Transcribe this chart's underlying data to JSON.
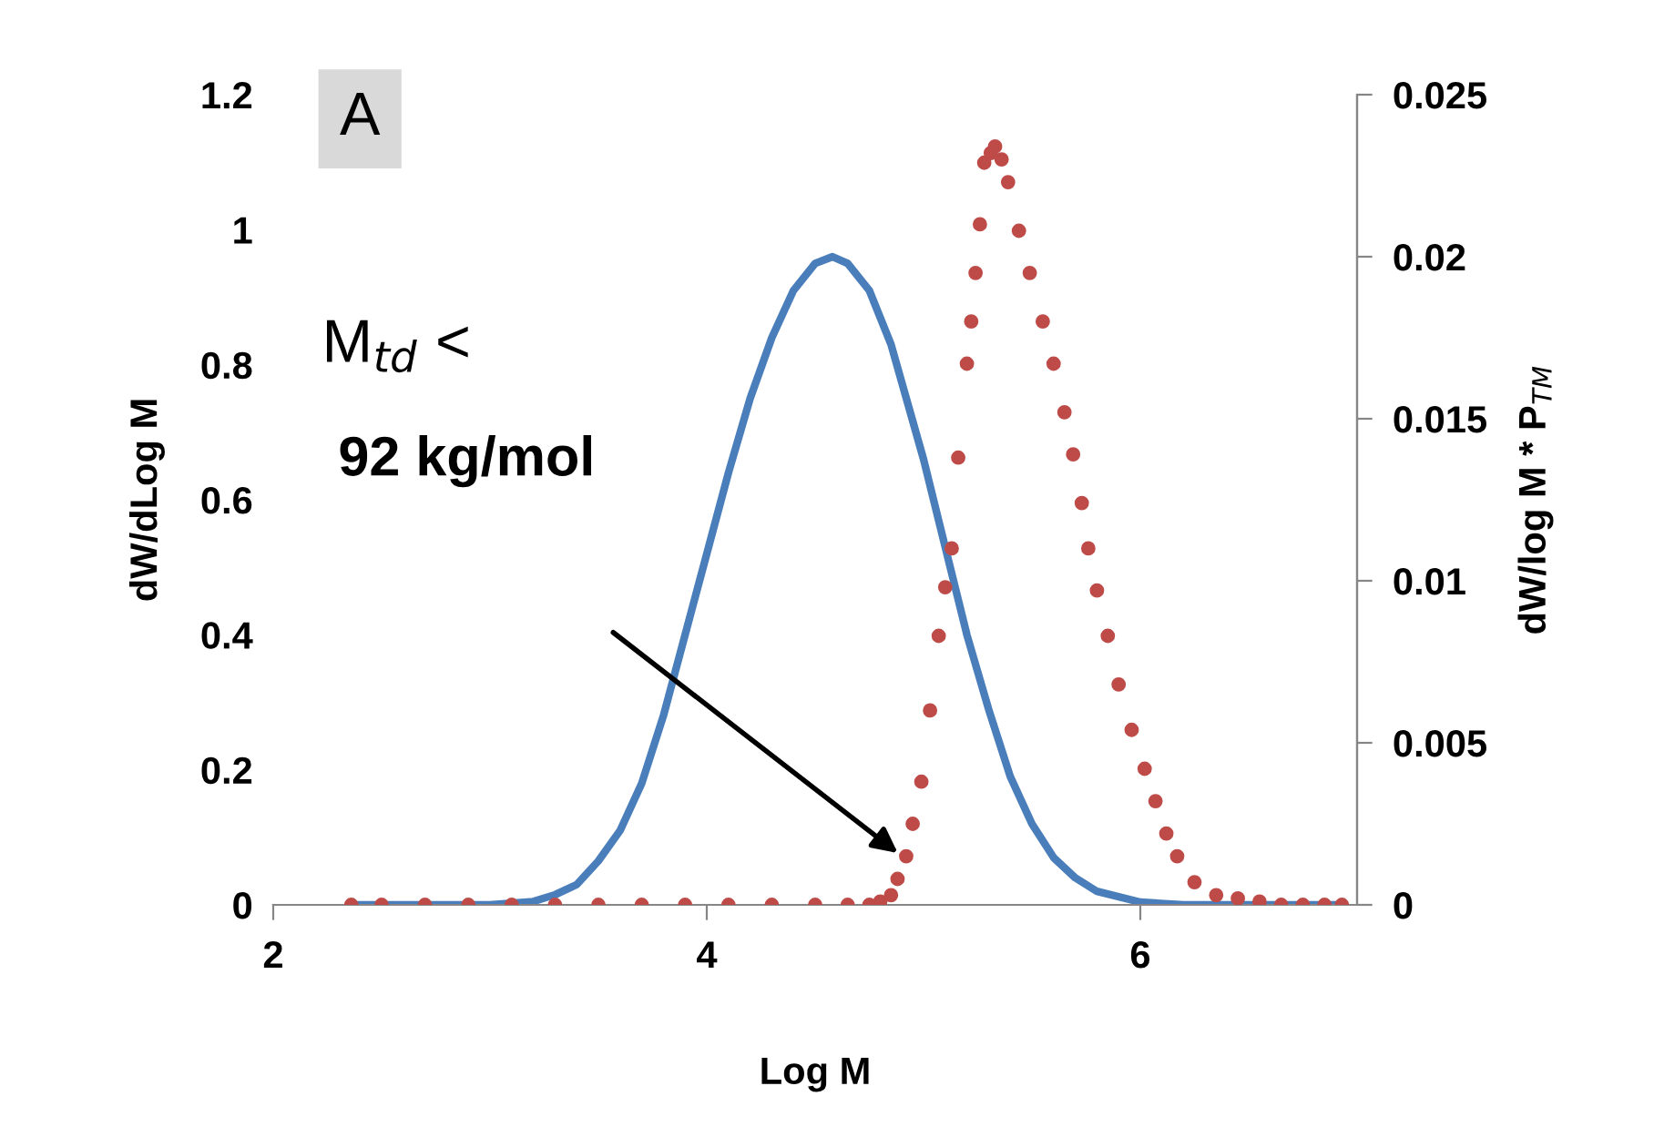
{
  "chart_data": {
    "type": "line",
    "xlabel": "Log M",
    "ylabel": "dW/dLog M",
    "y2label": "dW/log M * P$_{TM}$",
    "xlim": [
      2,
      7
    ],
    "xticks": [
      2,
      4,
      6
    ],
    "ylim": [
      0,
      1.2
    ],
    "yticks": [
      0,
      0.2,
      0.4,
      0.6,
      0.8,
      1,
      1.2
    ],
    "y2lim": [
      0,
      0.025
    ],
    "y2ticks": [
      0,
      0.005,
      0.01,
      0.015,
      0.02,
      0.025
    ],
    "grid": false,
    "legend": false,
    "annotations": [
      "A",
      "M$_{td}$ <",
      "92 kg/mol"
    ],
    "series": [
      {
        "color": "#4a7ebb",
        "x": [
          2.4,
          3.0,
          3.2,
          3.3,
          3.4,
          3.5,
          3.6,
          3.7,
          3.8,
          3.9,
          4.0,
          4.1,
          4.2,
          4.3,
          4.4,
          4.5,
          4.58,
          4.65,
          4.75,
          4.85,
          5.0,
          5.1,
          5.2,
          5.3,
          5.4,
          5.5,
          5.6,
          5.7,
          5.8,
          6.0,
          6.2,
          6.9
        ],
        "values": [
          0,
          0,
          0.005,
          0.015,
          0.03,
          0.065,
          0.11,
          0.18,
          0.28,
          0.4,
          0.52,
          0.64,
          0.75,
          0.84,
          0.91,
          0.95,
          0.96,
          0.95,
          0.91,
          0.83,
          0.66,
          0.53,
          0.4,
          0.29,
          0.19,
          0.12,
          0.07,
          0.04,
          0.02,
          0.004,
          0,
          0
        ]
      },
      {
        "type": "scatter",
        "axis": "y2",
        "marker": "circle",
        "color": "#be4b48",
        "x": [
          2.36,
          2.5,
          2.7,
          2.9,
          3.1,
          3.3,
          3.5,
          3.7,
          3.9,
          4.1,
          4.3,
          4.5,
          4.65,
          4.75,
          4.8,
          4.85,
          4.88,
          4.92,
          4.95,
          4.99,
          5.03,
          5.07,
          5.1,
          5.13,
          5.16,
          5.2,
          5.22,
          5.24,
          5.26,
          5.28,
          5.31,
          5.33,
          5.36,
          5.39,
          5.44,
          5.49,
          5.55,
          5.6,
          5.65,
          5.69,
          5.73,
          5.76,
          5.8,
          5.85,
          5.9,
          5.96,
          6.02,
          6.07,
          6.12,
          6.17,
          6.25,
          6.35,
          6.45,
          6.55,
          6.65,
          6.75,
          6.85,
          6.93
        ],
        "values": [
          0,
          0,
          0,
          0,
          0,
          0,
          0,
          0,
          0,
          0,
          0,
          0,
          0,
          0,
          0.0001,
          0.0003,
          0.0008,
          0.0015,
          0.0025,
          0.0038,
          0.006,
          0.0083,
          0.0098,
          0.011,
          0.0138,
          0.0167,
          0.018,
          0.0195,
          0.021,
          0.0229,
          0.0232,
          0.0234,
          0.023,
          0.0223,
          0.0208,
          0.0195,
          0.018,
          0.0167,
          0.0152,
          0.0139,
          0.0124,
          0.011,
          0.0097,
          0.0083,
          0.0068,
          0.0054,
          0.0042,
          0.0032,
          0.0022,
          0.0015,
          0.0007,
          0.0003,
          0.0002,
          0.0001,
          0,
          0,
          0,
          0
        ]
      }
    ]
  }
}
